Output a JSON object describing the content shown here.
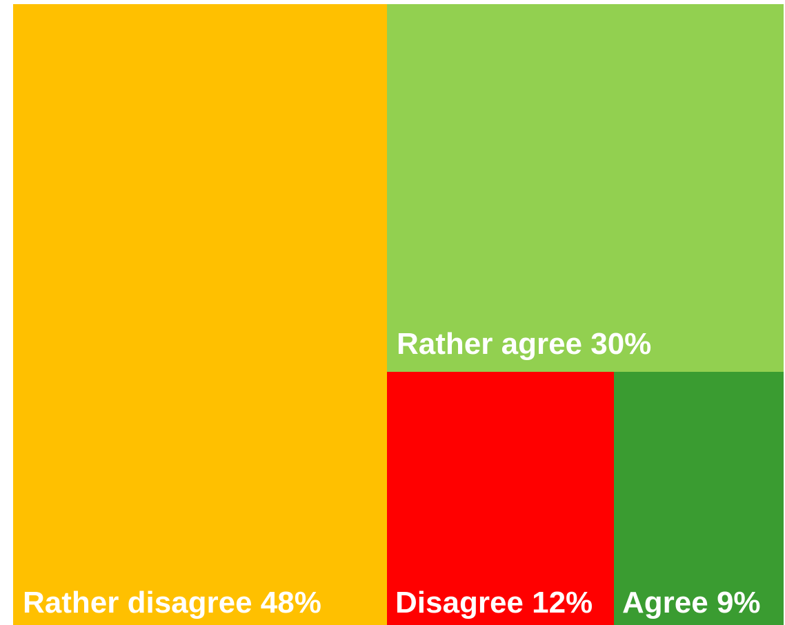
{
  "chart_data": {
    "type": "treemap",
    "items": [
      {
        "name": "Rather disagree",
        "value": 48,
        "label": "Rather disagree 48%",
        "color": "#FFC000"
      },
      {
        "name": "Rather agree",
        "value": 30,
        "label": "Rather agree 30%",
        "color": "#92D050"
      },
      {
        "name": "Disagree",
        "value": 12,
        "label": "Disagree 12%",
        "color": "#FF0000"
      },
      {
        "name": "Agree",
        "value": 9,
        "label": "Agree 9%",
        "color": "#3A9C31"
      }
    ],
    "label_color": "#FFFFFF",
    "legend": "none"
  }
}
